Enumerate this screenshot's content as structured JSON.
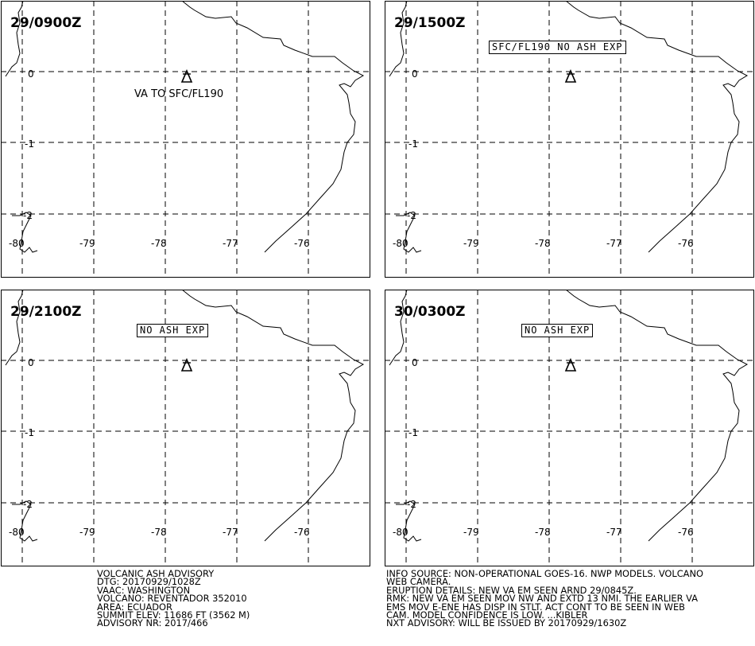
{
  "panels": [
    {
      "time": "29/0900Z",
      "status": "VA TO SFC/FL190",
      "status_style": "plain"
    },
    {
      "time": "29/1500Z",
      "status": "SFC/FL190 NO ASH EXP",
      "status_style": "box"
    },
    {
      "time": "29/2100Z",
      "status": "NO ASH EXP",
      "status_style": "box"
    },
    {
      "time": "30/0300Z",
      "status": "NO ASH EXP",
      "status_style": "box"
    }
  ],
  "map_grid": {
    "lat_labels": [
      "0",
      "-1",
      "-2"
    ],
    "lon_labels": [
      "-80",
      "-79",
      "-78",
      "-77",
      "-76"
    ]
  },
  "volcano_icon": "volcano-triangle-icon",
  "advisory_left": [
    "VOLCANIC ASH ADVISORY",
    "DTG: 20170929/1028Z",
    "VAAC: WASHINGTON",
    "VOLCANO: REVENTADOR 352010",
    "AREA: ECUADOR",
    "SUMMIT ELEV: 11686 FT (3562 M)",
    "ADVISORY NR: 2017/466"
  ],
  "advisory_right": [
    "INFO SOURCE: NON-OPERATIONAL GOES-16. NWP MODELS. VOLCANO",
    "WEB CAMERA.",
    "ERUPTION DETAILS: NEW VA EM SEEN ARND 29/0845Z.",
    "RMK: NEW VA EM SEEN MOV NW AND EXTD 13 NMI. THE EARLIER VA",
    "EMS MOV E-ENE HAS DISP IN STLT. ACT CONT TO BE SEEN IN WEB",
    "CAM. MODEL CONFIDENCE IS LOW. ...KIBLER",
    "NXT ADVISORY: WILL BE ISSUED BY 20170929/1630Z"
  ]
}
